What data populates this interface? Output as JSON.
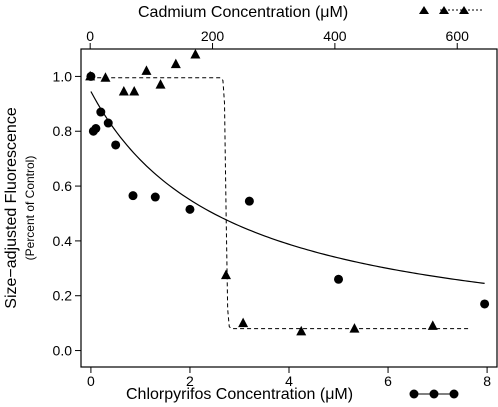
{
  "chart_data": {
    "type": "scatter",
    "y_axis": {
      "label": "Size−adjusted Fluorescence",
      "sublabel": "(Percent of Control)",
      "range": [
        -0.06,
        1.1
      ],
      "ticks": [
        0.0,
        0.2,
        0.4,
        0.6,
        0.8,
        1.0
      ],
      "tick_labels": [
        "0.0",
        "0.2",
        "0.4",
        "0.6",
        "0.8",
        "1.0"
      ]
    },
    "x_bottom": {
      "label": "Chlorpyrifos Concentration (μM)",
      "range": [
        -0.2,
        8.2
      ],
      "ticks": [
        0,
        2,
        4,
        6,
        8
      ],
      "tick_labels": [
        "0",
        "2",
        "4",
        "6",
        "8"
      ]
    },
    "x_top": {
      "label": "Cadmium Concentration (μM)",
      "range": [
        -15,
        665
      ],
      "ticks": [
        0,
        200,
        400,
        600
      ],
      "tick_labels": [
        "0",
        "200",
        "400",
        "600"
      ]
    },
    "series": [
      {
        "marker": "circle",
        "axis": "bottom",
        "points": [
          [
            0.0,
            1.0
          ],
          [
            0.05,
            0.8
          ],
          [
            0.1,
            0.81
          ],
          [
            0.2,
            0.87
          ],
          [
            0.35,
            0.83
          ],
          [
            0.5,
            0.75
          ],
          [
            0.85,
            0.565
          ],
          [
            1.3,
            0.56
          ],
          [
            2.0,
            0.515
          ],
          [
            3.2,
            0.545
          ],
          [
            5.0,
            0.26
          ],
          [
            7.95,
            0.17
          ]
        ],
        "fit": {
          "type": "curve",
          "style": "solid",
          "x0": 0.0,
          "y0": 0.945,
          "x_end": 7.95,
          "y_end": 0.245
        }
      },
      {
        "marker": "triangle",
        "axis": "top",
        "points": [
          [
            0,
            1.0
          ],
          [
            25,
            0.995
          ],
          [
            55,
            0.945
          ],
          [
            72,
            0.945
          ],
          [
            92,
            1.02
          ],
          [
            115,
            0.97
          ],
          [
            140,
            1.045
          ],
          [
            172,
            1.08
          ],
          [
            222,
            0.275
          ],
          [
            250,
            0.1
          ],
          [
            345,
            0.07
          ],
          [
            432,
            0.08
          ],
          [
            560,
            0.09
          ]
        ],
        "fit": {
          "type": "step",
          "style": "dashed",
          "y_high": 0.995,
          "y_low": 0.08,
          "x_step": 222,
          "x_start": 0,
          "x_end": 620
        }
      }
    ],
    "grid": false
  }
}
